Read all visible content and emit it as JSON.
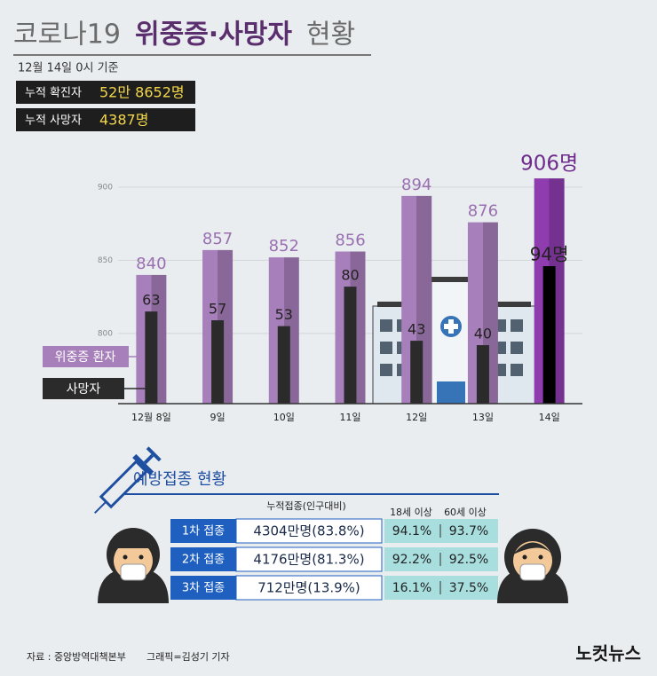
{
  "header": {
    "title_parts": [
      "코로나19",
      "위중증·사망자",
      "현황"
    ],
    "date": "12월 14일 0시 기준",
    "totals": [
      {
        "label": "누적 확진자",
        "value": "52만 8652명"
      },
      {
        "label": "누적 사망자",
        "value": "4387명"
      }
    ]
  },
  "chart_data": {
    "type": "bar",
    "categories": [
      "12월 8일",
      "9일",
      "10일",
      "11일",
      "12일",
      "13일",
      "14일"
    ],
    "series": [
      {
        "name": "위중증 환자",
        "color": "#a77fba",
        "colors": [
          "#a77fba",
          "#a77fba",
          "#a77fba",
          "#a77fba",
          "#a77fba",
          "#a77fba",
          "#8e3cae"
        ],
        "values": [
          840,
          857,
          852,
          856,
          894,
          876,
          906
        ],
        "value_labels": [
          "840",
          "857",
          "852",
          "856",
          "894",
          "876",
          "906명"
        ]
      },
      {
        "name": "사망자",
        "color": "#2b2b2b",
        "axis": "y2",
        "colors": [
          "#2b2b2b",
          "#2b2b2b",
          "#2b2b2b",
          "#2b2b2b",
          "#2b2b2b",
          "#2b2b2b",
          "#000000"
        ],
        "values": [
          63,
          57,
          53,
          80,
          43,
          40,
          94
        ],
        "value_labels": [
          "63",
          "57",
          "53",
          "80",
          "43",
          "40",
          "94명"
        ]
      }
    ],
    "ylim": [
      752,
      920
    ],
    "yticks": [
      800,
      850,
      900
    ],
    "y2lim": [
      0,
      168
    ],
    "grid": true
  },
  "vaccination": {
    "title": "예방접종 현황",
    "columns": [
      "누적접종(인구대비)",
      "18세 이상",
      "60세 이상"
    ],
    "rows": [
      [
        "1차 접종",
        "4304만명(83.8%)",
        "94.1%",
        "93.7%"
      ],
      [
        "2차 접종",
        "4176만명(81.3%)",
        "92.2%",
        "92.5%"
      ],
      [
        "3차 접종",
        "712만명(13.9%)",
        "16.1%",
        "37.5%"
      ]
    ]
  },
  "footer": {
    "source": "자료 : 중앙방역대책본부",
    "credit": "그래픽=김성기 기자",
    "logo": "노컷뉴스"
  }
}
